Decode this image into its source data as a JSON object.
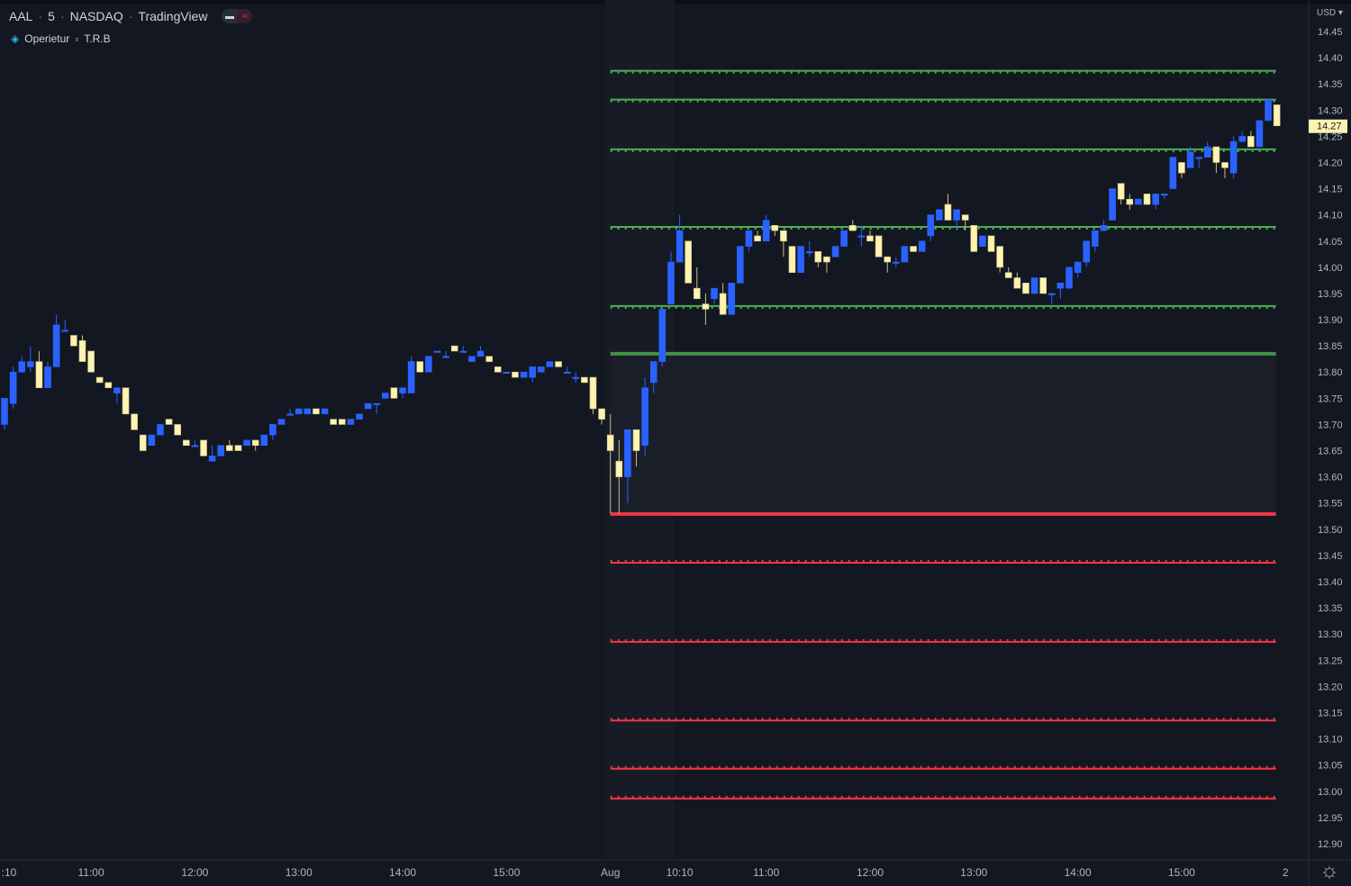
{
  "legend": {
    "symbol": "AAL",
    "interval": "5",
    "exchange": "NASDAQ",
    "source": "TradingView",
    "separator": "·"
  },
  "indicator": {
    "name": "Operietur",
    "params": "T.R.B",
    "icon": "diamond-icon"
  },
  "price_axis": {
    "currency": "USD",
    "current_price": "14.27"
  },
  "colors": {
    "background": "#131722",
    "up": "#2962ff",
    "down": "#fff3b0",
    "resistance": "#4caf50",
    "support": "#f23645",
    "current_price_label": "#fff3b0"
  },
  "chart_data": {
    "type": "candlestick",
    "title": "",
    "ylim": [
      12.87,
      14.47
    ],
    "y_ticks": [
      "14.45",
      "14.40",
      "14.35",
      "14.30",
      "14.25",
      "14.20",
      "14.15",
      "14.10",
      "14.05",
      "14.00",
      "13.95",
      "13.90",
      "13.85",
      "13.80",
      "13.75",
      "13.70",
      "13.65",
      "13.60",
      "13.55",
      "13.50",
      "13.45",
      "13.40",
      "13.35",
      "13.30",
      "13.25",
      "13.20",
      "13.15",
      "13.10",
      "13.05",
      "13.00",
      "12.95",
      "12.90"
    ],
    "x_ticks": [
      {
        "label": ":10",
        "bar": 0
      },
      {
        "label": "11:00",
        "bar": 10
      },
      {
        "label": "12:00",
        "bar": 22
      },
      {
        "label": "13:00",
        "bar": 34
      },
      {
        "label": "14:00",
        "bar": 46
      },
      {
        "label": "15:00",
        "bar": 58
      },
      {
        "label": "Aug",
        "bar": 70
      },
      {
        "label": "10:10",
        "bar": 78
      },
      {
        "label": "11:00",
        "bar": 88
      },
      {
        "label": "12:00",
        "bar": 100
      },
      {
        "label": "13:00",
        "bar": 112
      },
      {
        "label": "14:00",
        "bar": 124
      },
      {
        "label": "15:00",
        "bar": 136
      },
      {
        "label": "2",
        "bar": 148
      }
    ],
    "ohlc_fields": [
      "open",
      "high",
      "low",
      "close"
    ],
    "candles": [
      [
        13.7,
        13.75,
        13.69,
        13.75
      ],
      [
        13.74,
        13.81,
        13.73,
        13.8
      ],
      [
        13.8,
        13.83,
        13.8,
        13.82
      ],
      [
        13.81,
        13.85,
        13.8,
        13.82
      ],
      [
        13.82,
        13.84,
        13.77,
        13.77
      ],
      [
        13.77,
        13.82,
        13.77,
        13.81
      ],
      [
        13.81,
        13.91,
        13.81,
        13.89
      ],
      [
        13.88,
        13.9,
        13.88,
        13.88
      ],
      [
        13.87,
        13.87,
        13.85,
        13.85
      ],
      [
        13.86,
        13.87,
        13.82,
        13.82
      ],
      [
        13.84,
        13.84,
        13.8,
        13.8
      ],
      [
        13.79,
        13.79,
        13.78,
        13.78
      ],
      [
        13.78,
        13.78,
        13.77,
        13.77
      ],
      [
        13.76,
        13.77,
        13.74,
        13.77
      ],
      [
        13.77,
        13.77,
        13.72,
        13.72
      ],
      [
        13.72,
        13.72,
        13.69,
        13.69
      ],
      [
        13.68,
        13.68,
        13.65,
        13.65
      ],
      [
        13.66,
        13.68,
        13.66,
        13.68
      ],
      [
        13.68,
        13.7,
        13.68,
        13.7
      ],
      [
        13.71,
        13.71,
        13.7,
        13.7
      ],
      [
        13.7,
        13.7,
        13.68,
        13.68
      ],
      [
        13.67,
        13.67,
        13.66,
        13.66
      ],
      [
        13.66,
        13.67,
        13.66,
        13.66
      ],
      [
        13.67,
        13.67,
        13.64,
        13.64
      ],
      [
        13.63,
        13.66,
        13.63,
        13.64
      ],
      [
        13.64,
        13.66,
        13.64,
        13.66
      ],
      [
        13.66,
        13.67,
        13.65,
        13.65
      ],
      [
        13.66,
        13.66,
        13.65,
        13.65
      ],
      [
        13.66,
        13.67,
        13.66,
        13.67
      ],
      [
        13.67,
        13.67,
        13.65,
        13.66
      ],
      [
        13.66,
        13.68,
        13.66,
        13.68
      ],
      [
        13.68,
        13.7,
        13.67,
        13.7
      ],
      [
        13.7,
        13.71,
        13.7,
        13.71
      ],
      [
        13.72,
        13.73,
        13.72,
        13.72
      ],
      [
        13.72,
        13.73,
        13.72,
        13.73
      ],
      [
        13.72,
        13.73,
        13.72,
        13.73
      ],
      [
        13.73,
        13.73,
        13.72,
        13.72
      ],
      [
        13.72,
        13.73,
        13.72,
        13.73
      ],
      [
        13.71,
        13.71,
        13.7,
        13.7
      ],
      [
        13.71,
        13.71,
        13.7,
        13.7
      ],
      [
        13.7,
        13.71,
        13.7,
        13.71
      ],
      [
        13.71,
        13.72,
        13.71,
        13.72
      ],
      [
        13.73,
        13.74,
        13.73,
        13.74
      ],
      [
        13.74,
        13.74,
        13.72,
        13.74
      ],
      [
        13.75,
        13.76,
        13.75,
        13.76
      ],
      [
        13.77,
        13.77,
        13.75,
        13.75
      ],
      [
        13.76,
        13.77,
        13.75,
        13.77
      ],
      [
        13.76,
        13.83,
        13.76,
        13.82
      ],
      [
        13.82,
        13.82,
        13.8,
        13.8
      ],
      [
        13.8,
        13.83,
        13.8,
        13.83
      ],
      [
        13.84,
        13.84,
        13.84,
        13.84
      ],
      [
        13.83,
        13.84,
        13.83,
        13.83
      ],
      [
        13.85,
        13.85,
        13.84,
        13.84
      ],
      [
        13.84,
        13.85,
        13.84,
        13.84
      ],
      [
        13.82,
        13.83,
        13.82,
        13.83
      ],
      [
        13.83,
        13.85,
        13.83,
        13.84
      ],
      [
        13.83,
        13.83,
        13.82,
        13.82
      ],
      [
        13.81,
        13.81,
        13.8,
        13.8
      ],
      [
        13.8,
        13.8,
        13.8,
        13.8
      ],
      [
        13.8,
        13.8,
        13.79,
        13.79
      ],
      [
        13.79,
        13.8,
        13.79,
        13.8
      ],
      [
        13.79,
        13.81,
        13.78,
        13.81
      ],
      [
        13.8,
        13.81,
        13.8,
        13.81
      ],
      [
        13.81,
        13.82,
        13.81,
        13.82
      ],
      [
        13.82,
        13.82,
        13.81,
        13.81
      ],
      [
        13.8,
        13.81,
        13.8,
        13.8
      ],
      [
        13.79,
        13.8,
        13.78,
        13.79
      ],
      [
        13.79,
        13.79,
        13.78,
        13.78
      ],
      [
        13.79,
        13.79,
        13.72,
        13.73
      ],
      [
        13.73,
        13.73,
        13.7,
        13.71
      ],
      [
        13.68,
        13.72,
        13.53,
        13.65
      ],
      [
        13.63,
        13.67,
        13.53,
        13.6
      ],
      [
        13.6,
        13.69,
        13.55,
        13.69
      ],
      [
        13.69,
        13.69,
        13.62,
        13.65
      ],
      [
        13.66,
        13.79,
        13.64,
        13.77
      ],
      [
        13.78,
        13.82,
        13.76,
        13.82
      ],
      [
        13.82,
        13.92,
        13.81,
        13.92
      ],
      [
        13.93,
        14.03,
        13.93,
        14.01
      ],
      [
        14.01,
        14.1,
        14.01,
        14.07
      ],
      [
        14.05,
        14.05,
        13.97,
        13.97
      ],
      [
        13.96,
        14.0,
        13.94,
        13.94
      ],
      [
        13.93,
        13.95,
        13.89,
        13.92
      ],
      [
        13.94,
        13.96,
        13.93,
        13.96
      ],
      [
        13.95,
        13.97,
        13.91,
        13.91
      ],
      [
        13.91,
        13.97,
        13.91,
        13.97
      ],
      [
        13.97,
        14.04,
        13.97,
        14.04
      ],
      [
        14.04,
        14.07,
        14.03,
        14.07
      ],
      [
        14.06,
        14.07,
        14.05,
        14.05
      ],
      [
        14.05,
        14.1,
        14.05,
        14.09
      ],
      [
        14.08,
        14.08,
        14.06,
        14.07
      ],
      [
        14.07,
        14.07,
        14.02,
        14.05
      ],
      [
        14.04,
        14.04,
        13.99,
        13.99
      ],
      [
        13.99,
        14.04,
        13.99,
        14.04
      ],
      [
        14.03,
        14.05,
        14.02,
        14.03
      ],
      [
        14.03,
        14.03,
        14.0,
        14.01
      ],
      [
        14.02,
        14.02,
        13.99,
        14.01
      ],
      [
        14.02,
        14.04,
        14.02,
        14.04
      ],
      [
        14.04,
        14.07,
        14.04,
        14.07
      ],
      [
        14.08,
        14.09,
        14.07,
        14.07
      ],
      [
        14.06,
        14.08,
        14.04,
        14.06
      ],
      [
        14.06,
        14.07,
        14.05,
        14.05
      ],
      [
        14.06,
        14.06,
        14.02,
        14.02
      ],
      [
        14.02,
        14.02,
        13.99,
        14.01
      ],
      [
        14.01,
        14.02,
        14.0,
        14.01
      ],
      [
        14.01,
        14.04,
        14.01,
        14.04
      ],
      [
        14.04,
        14.04,
        14.03,
        14.03
      ],
      [
        14.03,
        14.05,
        14.03,
        14.05
      ],
      [
        14.06,
        14.1,
        14.05,
        14.1
      ],
      [
        14.09,
        14.11,
        14.09,
        14.11
      ],
      [
        14.12,
        14.14,
        14.09,
        14.09
      ],
      [
        14.09,
        14.11,
        14.07,
        14.11
      ],
      [
        14.1,
        14.1,
        14.07,
        14.09
      ],
      [
        14.08,
        14.08,
        14.03,
        14.03
      ],
      [
        14.04,
        14.06,
        14.04,
        14.06
      ],
      [
        14.06,
        14.06,
        14.03,
        14.03
      ],
      [
        14.04,
        14.04,
        13.99,
        14.0
      ],
      [
        13.99,
        14.0,
        13.98,
        13.98
      ],
      [
        13.98,
        13.99,
        13.96,
        13.96
      ],
      [
        13.97,
        13.97,
        13.95,
        13.95
      ],
      [
        13.95,
        13.98,
        13.95,
        13.98
      ],
      [
        13.98,
        13.98,
        13.95,
        13.95
      ],
      [
        13.95,
        13.95,
        13.93,
        13.95
      ],
      [
        13.96,
        13.97,
        13.94,
        13.97
      ],
      [
        13.96,
        14.0,
        13.96,
        14.0
      ],
      [
        13.99,
        14.01,
        13.98,
        14.01
      ],
      [
        14.01,
        14.05,
        14.0,
        14.05
      ],
      [
        14.04,
        14.07,
        14.03,
        14.07
      ],
      [
        14.07,
        14.09,
        14.07,
        14.08
      ],
      [
        14.09,
        14.15,
        14.09,
        14.15
      ],
      [
        14.16,
        14.16,
        14.12,
        14.13
      ],
      [
        14.13,
        14.14,
        14.11,
        14.12
      ],
      [
        14.12,
        14.13,
        14.12,
        14.13
      ],
      [
        14.14,
        14.14,
        14.12,
        14.12
      ],
      [
        14.12,
        14.14,
        14.11,
        14.14
      ],
      [
        14.14,
        14.14,
        14.13,
        14.14
      ],
      [
        14.15,
        14.21,
        14.15,
        14.21
      ],
      [
        14.2,
        14.2,
        14.17,
        14.18
      ],
      [
        14.19,
        14.23,
        14.19,
        14.22
      ],
      [
        14.21,
        14.21,
        14.19,
        14.21
      ],
      [
        14.21,
        14.24,
        14.21,
        14.23
      ],
      [
        14.23,
        14.23,
        14.18,
        14.2
      ],
      [
        14.2,
        14.2,
        14.17,
        14.19
      ],
      [
        14.18,
        14.25,
        14.17,
        14.24
      ],
      [
        14.24,
        14.26,
        14.24,
        14.25
      ],
      [
        14.25,
        14.26,
        14.23,
        14.23
      ],
      [
        14.23,
        14.28,
        14.23,
        14.28
      ],
      [
        14.28,
        14.32,
        14.28,
        14.32
      ],
      [
        14.31,
        14.31,
        14.27,
        14.27
      ]
    ],
    "levels": [
      {
        "price": 14.375,
        "kind": "resistance",
        "style": "dotted"
      },
      {
        "price": 14.32,
        "kind": "resistance",
        "style": "dotted"
      },
      {
        "price": 14.225,
        "kind": "resistance",
        "style": "dotted"
      },
      {
        "price": 14.077,
        "kind": "resistance",
        "style": "dotted"
      },
      {
        "price": 13.926,
        "kind": "resistance",
        "style": "dotted"
      },
      {
        "price": 13.835,
        "kind": "resistance",
        "style": "solid"
      },
      {
        "price": 13.529,
        "kind": "support",
        "style": "solid"
      },
      {
        "price": 13.436,
        "kind": "support",
        "style": "dotted"
      },
      {
        "price": 13.285,
        "kind": "support",
        "style": "dotted"
      },
      {
        "price": 13.135,
        "kind": "support",
        "style": "dotted"
      },
      {
        "price": 13.043,
        "kind": "support",
        "style": "dotted"
      },
      {
        "price": 12.986,
        "kind": "support",
        "style": "dotted"
      }
    ],
    "levels_start_bar": 70,
    "levels_end_bar": 147,
    "grid": false
  }
}
